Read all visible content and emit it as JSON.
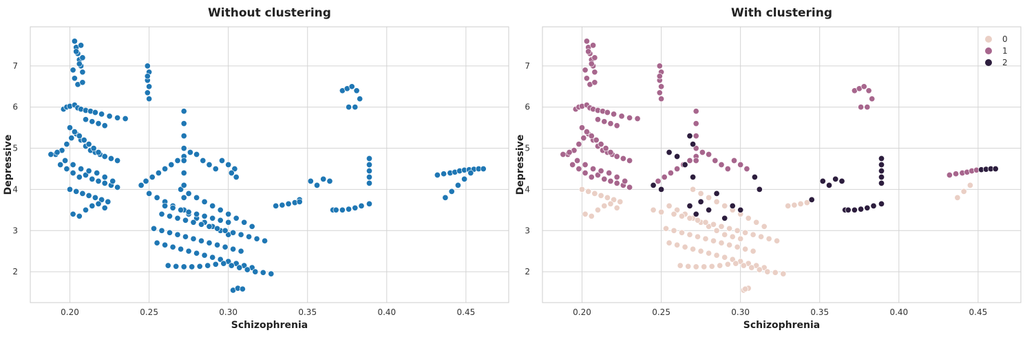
{
  "chart_data": [
    {
      "type": "scatter",
      "title": "Without clustering",
      "xlabel": "Schizophrenia",
      "ylabel": "Depressive",
      "xlim": [
        0.175,
        0.477
      ],
      "ylim": [
        1.25,
        7.95
      ],
      "xticks": [
        0.2,
        0.25,
        0.3,
        0.35,
        0.4,
        0.45
      ],
      "xtick_labels": [
        "0.20",
        "0.25",
        "0.30",
        "0.35",
        "0.40",
        "0.45"
      ],
      "yticks": [
        2,
        3,
        4,
        5,
        6,
        7
      ],
      "ytick_labels": [
        "2",
        "3",
        "4",
        "5",
        "6",
        "7"
      ],
      "grid": true,
      "legend": null,
      "series": [
        {
          "color": "#1f77b4",
          "x": [
            0.203,
            0.204,
            0.205,
            0.206,
            0.207,
            0.208,
            0.203,
            0.205,
            0.207,
            0.208,
            0.202,
            0.204,
            0.206,
            0.208,
            0.249,
            0.25,
            0.249,
            0.25,
            0.249,
            0.25,
            0.249,
            0.196,
            0.198,
            0.2,
            0.203,
            0.205,
            0.207,
            0.21,
            0.213,
            0.216,
            0.22,
            0.225,
            0.23,
            0.235,
            0.21,
            0.214,
            0.218,
            0.222,
            0.191,
            0.195,
            0.198,
            0.201,
            0.204,
            0.207,
            0.21,
            0.213,
            0.216,
            0.219,
            0.222,
            0.194,
            0.198,
            0.202,
            0.206,
            0.21,
            0.214,
            0.218,
            0.222,
            0.226,
            0.23,
            0.188,
            0.192,
            0.197,
            0.202,
            0.207,
            0.212,
            0.217,
            0.222,
            0.227,
            0.2,
            0.204,
            0.208,
            0.212,
            0.216,
            0.22,
            0.224,
            0.202,
            0.206,
            0.21,
            0.214,
            0.218,
            0.222,
            0.2,
            0.203,
            0.206,
            0.209,
            0.212,
            0.215,
            0.218,
            0.222,
            0.226,
            0.23,
            0.245,
            0.248,
            0.252,
            0.256,
            0.26,
            0.264,
            0.268,
            0.272,
            0.276,
            0.28,
            0.284,
            0.288,
            0.292,
            0.25,
            0.255,
            0.26,
            0.265,
            0.27,
            0.275,
            0.28,
            0.285,
            0.29,
            0.295,
            0.3,
            0.253,
            0.258,
            0.263,
            0.268,
            0.273,
            0.278,
            0.283,
            0.288,
            0.293,
            0.298,
            0.303,
            0.308,
            0.255,
            0.26,
            0.265,
            0.27,
            0.275,
            0.28,
            0.285,
            0.29,
            0.295,
            0.3,
            0.305,
            0.31,
            0.315,
            0.258,
            0.263,
            0.268,
            0.273,
            0.278,
            0.283,
            0.288,
            0.293,
            0.298,
            0.303,
            0.308,
            0.313,
            0.318,
            0.323,
            0.262,
            0.267,
            0.272,
            0.277,
            0.282,
            0.287,
            0.292,
            0.297,
            0.302,
            0.307,
            0.312,
            0.317,
            0.322,
            0.327,
            0.27,
            0.275,
            0.28,
            0.285,
            0.29,
            0.295,
            0.3,
            0.305,
            0.31,
            0.315,
            0.272,
            0.272,
            0.272,
            0.272,
            0.272,
            0.272,
            0.272,
            0.272,
            0.272,
            0.26,
            0.265,
            0.27,
            0.275,
            0.28,
            0.285,
            0.29,
            0.295,
            0.3,
            0.296,
            0.3,
            0.304,
            0.302,
            0.305,
            0.303,
            0.306,
            0.309,
            0.33,
            0.334,
            0.338,
            0.342,
            0.345,
            0.345,
            0.352,
            0.356,
            0.36,
            0.364,
            0.366,
            0.368,
            0.372,
            0.376,
            0.38,
            0.384,
            0.372,
            0.375,
            0.378,
            0.381,
            0.383,
            0.376,
            0.38,
            0.389,
            0.389,
            0.389,
            0.389,
            0.389,
            0.389,
            0.432,
            0.436,
            0.44,
            0.443,
            0.446,
            0.449,
            0.452,
            0.455,
            0.458,
            0.461,
            0.437,
            0.441,
            0.445,
            0.449,
            0.453
          ],
          "y": [
            7.6,
            7.45,
            7.3,
            7.15,
            7.0,
            6.85,
            6.7,
            6.55,
            7.5,
            7.2,
            6.9,
            7.35,
            7.05,
            6.6,
            7.0,
            6.85,
            6.65,
            6.5,
            6.35,
            6.2,
            6.75,
            5.95,
            6.0,
            6.02,
            6.05,
            5.98,
            5.95,
            5.92,
            5.9,
            5.87,
            5.83,
            5.78,
            5.74,
            5.72,
            5.7,
            5.65,
            5.6,
            5.55,
            4.85,
            4.95,
            5.1,
            5.25,
            5.35,
            5.2,
            5.05,
            4.95,
            4.9,
            4.85,
            4.8,
            4.6,
            4.5,
            4.4,
            4.3,
            4.35,
            4.25,
            4.2,
            4.15,
            4.1,
            4.05,
            4.85,
            4.9,
            4.7,
            4.6,
            4.5,
            4.45,
            4.4,
            4.3,
            4.2,
            4.0,
            3.95,
            3.9,
            3.85,
            3.8,
            3.75,
            3.7,
            3.4,
            3.35,
            3.5,
            3.6,
            3.65,
            3.55,
            5.5,
            5.4,
            5.3,
            5.2,
            5.1,
            5.0,
            4.9,
            4.8,
            4.75,
            4.7,
            4.1,
            4.2,
            4.3,
            4.4,
            4.5,
            4.6,
            4.7,
            4.8,
            4.9,
            4.85,
            4.7,
            4.6,
            4.5,
            3.9,
            3.8,
            3.7,
            3.6,
            3.5,
            3.4,
            3.3,
            3.2,
            3.1,
            3.0,
            2.9,
            3.05,
            3.0,
            2.95,
            2.9,
            2.85,
            2.8,
            2.75,
            2.7,
            2.65,
            2.6,
            2.55,
            2.5,
            2.7,
            2.65,
            2.6,
            2.55,
            2.5,
            2.45,
            2.4,
            2.35,
            2.3,
            2.25,
            2.2,
            2.15,
            2.1,
            3.4,
            3.35,
            3.3,
            3.25,
            3.2,
            3.15,
            3.1,
            3.05,
            3.0,
            2.95,
            2.9,
            2.85,
            2.8,
            2.75,
            2.15,
            2.13,
            2.12,
            2.12,
            2.13,
            2.15,
            2.18,
            2.2,
            2.15,
            2.1,
            2.05,
            2.0,
            1.98,
            1.95,
            4.0,
            3.9,
            3.8,
            3.7,
            3.6,
            3.5,
            3.4,
            3.3,
            3.2,
            3.1,
            5.9,
            5.6,
            5.3,
            5.0,
            4.7,
            4.4,
            4.1,
            3.8,
            3.5,
            3.6,
            3.55,
            3.5,
            3.45,
            3.4,
            3.35,
            3.3,
            3.25,
            3.2,
            4.7,
            4.6,
            4.5,
            4.4,
            4.3,
            1.55,
            1.6,
            1.58,
            3.6,
            3.62,
            3.65,
            3.68,
            3.75,
            3.7,
            4.2,
            4.1,
            4.25,
            4.2,
            3.5,
            3.5,
            3.5,
            3.52,
            3.55,
            3.6,
            6.4,
            6.45,
            6.5,
            6.4,
            6.2,
            6.0,
            6.0,
            4.75,
            4.6,
            4.45,
            4.3,
            4.15,
            3.65,
            4.35,
            4.38,
            4.4,
            4.42,
            4.45,
            4.47,
            4.48,
            4.49,
            4.5,
            4.5,
            3.8,
            3.95,
            4.1,
            4.25,
            4.4
          ]
        }
      ]
    },
    {
      "type": "scatter",
      "title": "With clustering",
      "xlabel": "Schizophrenia",
      "ylabel": "Depressive",
      "xlim": [
        0.175,
        0.477
      ],
      "ylim": [
        1.25,
        7.95
      ],
      "xticks": [
        0.2,
        0.25,
        0.3,
        0.35,
        0.4,
        0.45
      ],
      "xtick_labels": [
        "0.20",
        "0.25",
        "0.30",
        "0.35",
        "0.40",
        "0.45"
      ],
      "yticks": [
        2,
        3,
        4,
        5,
        6,
        7
      ],
      "ytick_labels": [
        "2",
        "3",
        "4",
        "5",
        "6",
        "7"
      ],
      "grid": true,
      "legend": "top-right",
      "series": [
        {
          "name": "0",
          "color": "#eacfc5",
          "x": [
            0.2,
            0.204,
            0.208,
            0.212,
            0.216,
            0.22,
            0.224,
            0.202,
            0.206,
            0.21,
            0.214,
            0.218,
            0.222,
            0.245,
            0.25,
            0.255,
            0.26,
            0.265,
            0.27,
            0.275,
            0.28,
            0.285,
            0.29,
            0.295,
            0.3,
            0.253,
            0.258,
            0.263,
            0.268,
            0.273,
            0.278,
            0.283,
            0.288,
            0.293,
            0.298,
            0.303,
            0.308,
            0.255,
            0.26,
            0.265,
            0.27,
            0.275,
            0.28,
            0.285,
            0.29,
            0.295,
            0.3,
            0.305,
            0.31,
            0.315,
            0.258,
            0.263,
            0.268,
            0.273,
            0.278,
            0.283,
            0.288,
            0.293,
            0.298,
            0.303,
            0.308,
            0.313,
            0.318,
            0.323,
            0.262,
            0.267,
            0.272,
            0.277,
            0.282,
            0.287,
            0.292,
            0.297,
            0.302,
            0.307,
            0.312,
            0.317,
            0.322,
            0.327,
            0.27,
            0.275,
            0.28,
            0.285,
            0.29,
            0.295,
            0.3,
            0.305,
            0.31,
            0.315,
            0.302,
            0.305,
            0.303,
            0.33,
            0.334,
            0.338,
            0.342,
            0.437,
            0.441,
            0.445
          ],
          "y": [
            4.0,
            3.95,
            3.9,
            3.85,
            3.8,
            3.75,
            3.7,
            3.4,
            3.35,
            3.5,
            3.6,
            3.65,
            3.55,
            3.5,
            3.45,
            3.6,
            3.5,
            3.4,
            3.3,
            3.2,
            3.1,
            3.0,
            2.9,
            2.85,
            2.8,
            3.05,
            3.0,
            2.95,
            2.9,
            2.85,
            2.8,
            2.75,
            2.7,
            2.65,
            2.6,
            2.55,
            2.5,
            2.7,
            2.65,
            2.6,
            2.55,
            2.5,
            2.45,
            2.4,
            2.35,
            2.3,
            2.25,
            2.2,
            2.15,
            2.1,
            3.4,
            3.35,
            3.3,
            3.25,
            3.2,
            3.15,
            3.1,
            3.05,
            3.0,
            2.95,
            2.9,
            2.85,
            2.8,
            2.75,
            2.15,
            2.13,
            2.12,
            2.12,
            2.13,
            2.15,
            2.18,
            2.2,
            2.15,
            2.1,
            2.05,
            2.0,
            1.98,
            1.95,
            4.0,
            3.9,
            3.8,
            3.7,
            3.6,
            3.5,
            3.4,
            3.3,
            3.2,
            3.1,
            1.55,
            1.6,
            1.58,
            3.6,
            3.62,
            3.65,
            3.68,
            3.8,
            3.95,
            4.1
          ]
        },
        {
          "name": "1",
          "color": "#a7668d",
          "x": [
            0.203,
            0.204,
            0.205,
            0.206,
            0.207,
            0.208,
            0.203,
            0.205,
            0.207,
            0.208,
            0.202,
            0.204,
            0.206,
            0.208,
            0.249,
            0.25,
            0.249,
            0.25,
            0.249,
            0.25,
            0.249,
            0.196,
            0.198,
            0.2,
            0.203,
            0.205,
            0.207,
            0.21,
            0.213,
            0.216,
            0.22,
            0.225,
            0.23,
            0.235,
            0.21,
            0.214,
            0.218,
            0.222,
            0.191,
            0.195,
            0.198,
            0.201,
            0.204,
            0.207,
            0.21,
            0.213,
            0.216,
            0.219,
            0.222,
            0.194,
            0.198,
            0.202,
            0.206,
            0.21,
            0.214,
            0.218,
            0.222,
            0.226,
            0.23,
            0.188,
            0.192,
            0.197,
            0.202,
            0.207,
            0.212,
            0.217,
            0.222,
            0.227,
            0.2,
            0.203,
            0.206,
            0.209,
            0.212,
            0.215,
            0.218,
            0.222,
            0.226,
            0.23,
            0.248,
            0.252,
            0.256,
            0.26,
            0.264,
            0.268,
            0.272,
            0.276,
            0.28,
            0.284,
            0.288,
            0.292,
            0.272,
            0.272,
            0.272,
            0.272,
            0.272,
            0.296,
            0.3,
            0.304,
            0.372,
            0.375,
            0.378,
            0.381,
            0.383,
            0.376,
            0.38,
            0.432,
            0.436,
            0.44,
            0.443,
            0.446,
            0.449
          ],
          "y": [
            7.6,
            7.45,
            7.3,
            7.15,
            7.0,
            6.85,
            6.7,
            6.55,
            7.5,
            7.2,
            6.9,
            7.35,
            7.05,
            6.6,
            7.0,
            6.85,
            6.65,
            6.5,
            6.35,
            6.2,
            6.75,
            5.95,
            6.0,
            6.02,
            6.05,
            5.98,
            5.95,
            5.92,
            5.9,
            5.87,
            5.83,
            5.78,
            5.74,
            5.72,
            5.7,
            5.65,
            5.6,
            5.55,
            4.85,
            4.95,
            5.1,
            5.25,
            5.35,
            5.2,
            5.05,
            4.95,
            4.9,
            4.85,
            4.8,
            4.6,
            4.5,
            4.4,
            4.3,
            4.35,
            4.25,
            4.2,
            4.15,
            4.1,
            4.05,
            4.85,
            4.9,
            4.7,
            4.6,
            4.5,
            4.45,
            4.4,
            4.3,
            4.2,
            5.5,
            5.4,
            5.3,
            5.2,
            5.1,
            5.0,
            4.9,
            4.8,
            4.75,
            4.7,
            4.2,
            4.3,
            4.4,
            4.5,
            4.6,
            4.7,
            4.8,
            4.9,
            4.85,
            4.7,
            4.6,
            4.5,
            5.9,
            5.6,
            5.3,
            5.0,
            4.7,
            4.7,
            4.6,
            4.5,
            6.4,
            6.45,
            6.5,
            6.4,
            6.2,
            6.0,
            6.0,
            4.35,
            4.38,
            4.4,
            4.42,
            4.45,
            4.47
          ]
        },
        {
          "name": "2",
          "color": "#2d1e3e",
          "x": [
            0.245,
            0.25,
            0.255,
            0.26,
            0.265,
            0.268,
            0.27,
            0.27,
            0.268,
            0.272,
            0.275,
            0.28,
            0.285,
            0.29,
            0.295,
            0.3,
            0.309,
            0.312,
            0.345,
            0.352,
            0.356,
            0.36,
            0.364,
            0.366,
            0.368,
            0.372,
            0.376,
            0.38,
            0.384,
            0.389,
            0.389,
            0.389,
            0.389,
            0.389,
            0.389,
            0.452,
            0.455,
            0.458,
            0.461
          ],
          "y": [
            4.1,
            4.0,
            4.9,
            4.8,
            4.6,
            5.3,
            5.1,
            4.3,
            3.6,
            3.4,
            3.7,
            3.5,
            3.9,
            3.3,
            3.6,
            3.5,
            4.3,
            4.0,
            3.75,
            4.2,
            4.1,
            4.25,
            4.2,
            3.5,
            3.5,
            3.5,
            3.52,
            3.55,
            3.6,
            4.75,
            4.6,
            4.45,
            4.3,
            4.15,
            3.65,
            4.48,
            4.49,
            4.5,
            4.5
          ]
        }
      ]
    }
  ]
}
